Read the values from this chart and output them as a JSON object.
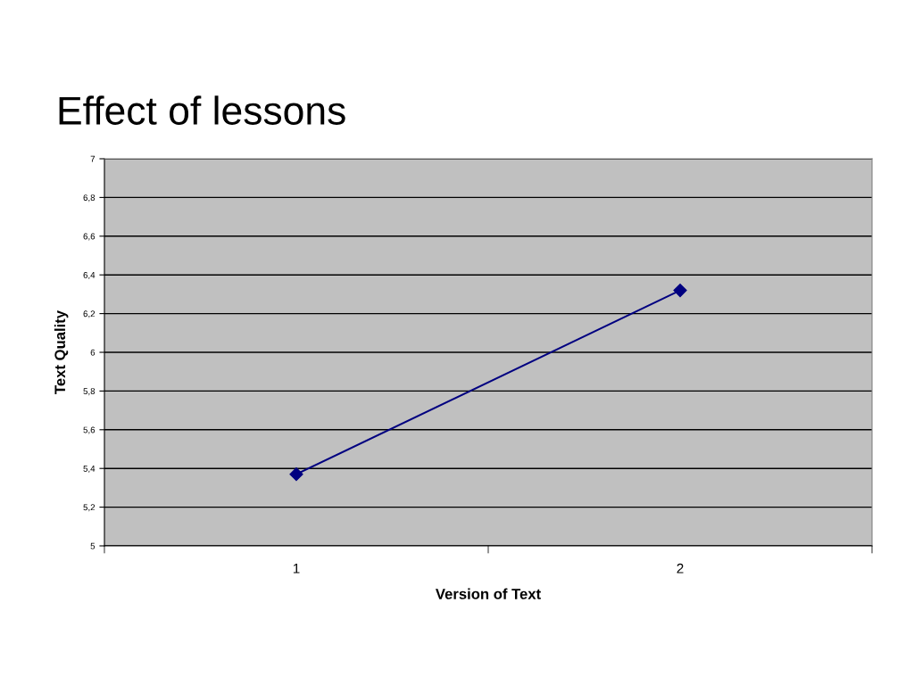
{
  "chart_data": {
    "type": "line",
    "title": "Effect of lessons",
    "xlabel": "Version of Text",
    "ylabel": "Text Quality",
    "categories": [
      "1",
      "2"
    ],
    "series": [
      {
        "color": "#000080",
        "values": [
          5.37,
          6.32
        ]
      }
    ],
    "marker": "diamond",
    "line_style": "solid",
    "grid": "y",
    "legend": false,
    "ylim": [
      5,
      7
    ],
    "yticks": [
      5,
      {
        "value": 5.2,
        "label": "5,2"
      },
      {
        "value": 5.4,
        "label": "5,4"
      },
      {
        "value": 5.6,
        "label": "5,6"
      },
      {
        "value": 5.8,
        "label": "5,8"
      },
      6,
      {
        "value": 6.2,
        "label": "6,2"
      },
      {
        "value": 6.4,
        "label": "6,4"
      },
      {
        "value": 6.6,
        "label": "6,6"
      },
      {
        "value": 6.8,
        "label": "6,8"
      },
      7
    ]
  }
}
